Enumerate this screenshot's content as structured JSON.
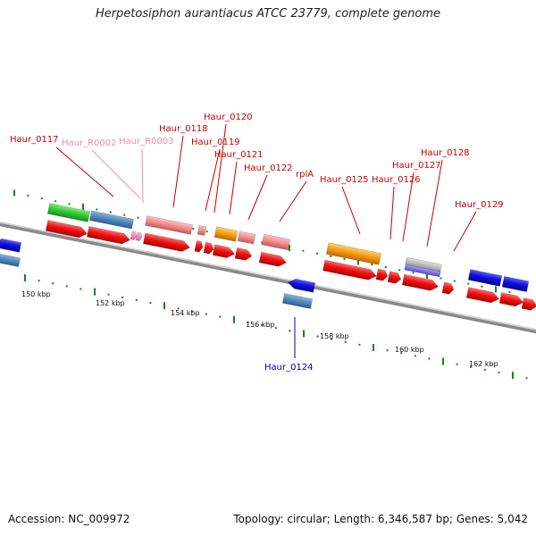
{
  "title": "Herpetosiphon aurantiacus ATCC 23779, complete genome",
  "footer": {
    "accession": "Accession: NC_009972",
    "summary": "Topology: circular; Length: 6,346,587 bp; Genes: 5,042"
  },
  "colors": {
    "backbone": "#8a8a8a",
    "cds_forward": "#ee1111",
    "cds_reverse": "#1111dd",
    "label_red": "#cc0000",
    "label_pink": "#f08ab0",
    "label_blue": "#0000aa",
    "tick_green": "#118811"
  },
  "scale": {
    "ticks": [
      {
        "label": "150 kbp"
      },
      {
        "label": "152 kbp"
      },
      {
        "label": "154 kbp"
      },
      {
        "label": "156 kbp"
      },
      {
        "label": "158 kbp"
      },
      {
        "label": "160 kbp"
      },
      {
        "label": "162 kbp"
      }
    ]
  },
  "gene_labels": [
    {
      "text": "Haur_0117",
      "color": "red"
    },
    {
      "text": "Haur_R0002",
      "color": "pink"
    },
    {
      "text": "Haur_R0003",
      "color": "pink"
    },
    {
      "text": "Haur_0118",
      "color": "red"
    },
    {
      "text": "Haur_0119",
      "color": "red"
    },
    {
      "text": "Haur_0120",
      "color": "red"
    },
    {
      "text": "Haur_0121",
      "color": "red"
    },
    {
      "text": "Haur_0122",
      "color": "red"
    },
    {
      "text": "rplA",
      "color": "red"
    },
    {
      "text": "Haur_0125",
      "color": "red"
    },
    {
      "text": "Haur_0126",
      "color": "red"
    },
    {
      "text": "Haur_0127",
      "color": "red"
    },
    {
      "text": "Haur_0128",
      "color": "red"
    },
    {
      "text": "Haur_0129",
      "color": "red"
    },
    {
      "text": "Haur_0124",
      "color": "blue"
    }
  ]
}
